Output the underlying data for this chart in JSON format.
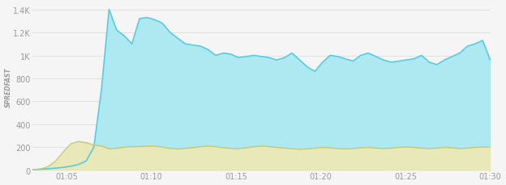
{
  "ylabel": "SPREDFAST",
  "ylim": [
    0,
    1450
  ],
  "yticks": [
    0,
    200,
    400,
    600,
    800,
    1000,
    1200,
    1400
  ],
  "ytick_labels": [
    "0",
    "200",
    "400",
    "600",
    "800",
    "1K",
    "1.2K",
    "1.4K"
  ],
  "xtick_labels": [
    "01:05",
    "01:10",
    "01:15",
    "01:20",
    "01:25",
    "01:30"
  ],
  "background_color": "#f5f5f5",
  "guardiola_color": "#aee8f0",
  "guardiola_line_color": "#55cce0",
  "deadlineday_color": "#e8e8b8",
  "deadlineday_line_color": "#c8c870",
  "guardiola_x": [
    0,
    1,
    2,
    3,
    4,
    5,
    6,
    7,
    8,
    9,
    10,
    11,
    12,
    13,
    14,
    15,
    16,
    17,
    18,
    19,
    20,
    21,
    22,
    23,
    24,
    25,
    26,
    27,
    28,
    29,
    30,
    31,
    32,
    33,
    34,
    35,
    36,
    37,
    38,
    39,
    40,
    41,
    42,
    43,
    44,
    45,
    46,
    47,
    48,
    49,
    50,
    51,
    52,
    53,
    54,
    55,
    56,
    57,
    58,
    59,
    60
  ],
  "guardiola_y": [
    5,
    8,
    12,
    18,
    25,
    35,
    50,
    80,
    200,
    700,
    1400,
    1220,
    1170,
    1100,
    1320,
    1330,
    1310,
    1280,
    1200,
    1150,
    1100,
    1090,
    1080,
    1050,
    1000,
    1020,
    1010,
    980,
    990,
    1000,
    990,
    980,
    960,
    980,
    1020,
    960,
    900,
    860,
    940,
    1000,
    990,
    970,
    950,
    1000,
    1020,
    990,
    960,
    940,
    950,
    960,
    970,
    1000,
    940,
    920,
    960,
    990,
    1020,
    1080,
    1100,
    1130,
    960
  ],
  "deadlineday_x": [
    0,
    1,
    2,
    3,
    4,
    5,
    6,
    7,
    8,
    9,
    10,
    11,
    12,
    13,
    14,
    15,
    16,
    17,
    18,
    19,
    20,
    21,
    22,
    23,
    24,
    25,
    26,
    27,
    28,
    29,
    30,
    31,
    32,
    33,
    34,
    35,
    36,
    37,
    38,
    39,
    40,
    41,
    42,
    43,
    44,
    45,
    46,
    47,
    48,
    49,
    50,
    51,
    52,
    53,
    54,
    55,
    56,
    57,
    58,
    59,
    60
  ],
  "deadlineday_y": [
    5,
    10,
    30,
    80,
    160,
    230,
    250,
    240,
    220,
    210,
    185,
    190,
    200,
    205,
    205,
    210,
    210,
    200,
    190,
    185,
    190,
    195,
    205,
    210,
    205,
    195,
    190,
    188,
    195,
    205,
    210,
    205,
    198,
    192,
    188,
    182,
    185,
    192,
    198,
    195,
    188,
    185,
    188,
    195,
    198,
    192,
    188,
    192,
    198,
    202,
    198,
    192,
    188,
    192,
    198,
    195,
    188,
    192,
    198,
    202,
    200
  ]
}
